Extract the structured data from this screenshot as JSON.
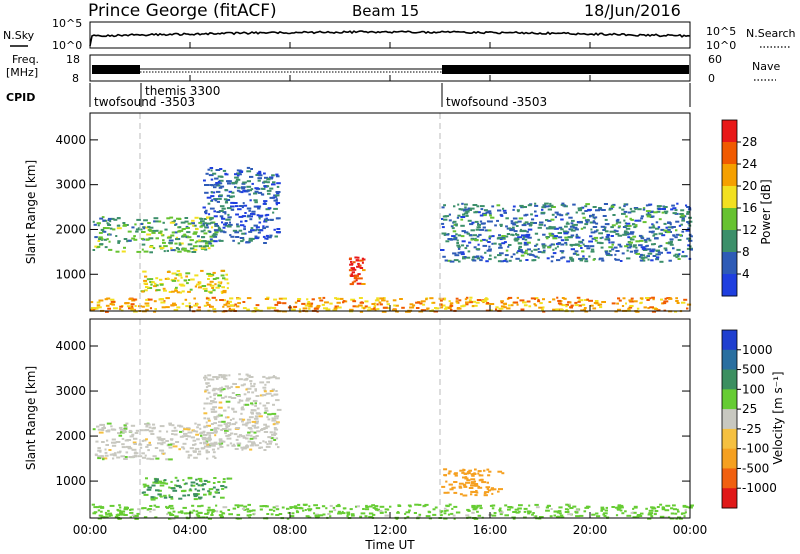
{
  "header": {
    "title": "Prince George (fitACF)",
    "beam": "Beam 15",
    "date": "18/Jun/2016"
  },
  "nsky_panel": {
    "left_label": "N.Sky",
    "right_label": "N.Search",
    "left_ticks": [
      "10^5",
      "10^0"
    ],
    "right_ticks": [
      "10^5",
      "10^0"
    ]
  },
  "freq_panel": {
    "left_label_1": "Freq.",
    "left_label_2": "[MHz]",
    "right_label": "Nave",
    "left_ticks": [
      "18",
      "8"
    ],
    "right_ticks": [
      "60",
      "0"
    ]
  },
  "cpid_panel": {
    "label": "CPID",
    "segments": [
      {
        "name": "twofsound -3503",
        "start_hour": 0,
        "end_hour": 2
      },
      {
        "name": "themis 3300",
        "start_hour": 2,
        "end_hour": 14
      },
      {
        "name": "twofsound -3503",
        "start_hour": 14,
        "end_hour": 24
      }
    ]
  },
  "x_axis": {
    "label": "Time UT",
    "ticks": [
      "00:00",
      "04:00",
      "08:00",
      "12:00",
      "16:00",
      "20:00",
      "00:00"
    ],
    "tick_hours": [
      0,
      4,
      8,
      12,
      16,
      20,
      24
    ],
    "range": [
      0,
      24
    ]
  },
  "chart_data": [
    {
      "type": "heatmap",
      "panel": "power",
      "xlabel": "Time UT",
      "ylabel": "Slant Range [km]",
      "xlim": [
        0,
        24
      ],
      "ylim": [
        180,
        4600
      ],
      "yticks": [
        1000,
        2000,
        3000,
        4000
      ],
      "colorbar": {
        "label": "Power [dB]",
        "ticks": [
          "4",
          "8",
          "12",
          "16",
          "20",
          "24",
          "28"
        ],
        "range": [
          0,
          32
        ],
        "colors": [
          "#1f3fdf",
          "#2e5bb6",
          "#3c8f6a",
          "#66c230",
          "#f2e020",
          "#f5a000",
          "#f05a00",
          "#e81818"
        ]
      },
      "features": [
        {
          "name": "backscatter band",
          "t_start": 0.1,
          "t_end": 5.0,
          "range_km": [
            1500,
            2300
          ],
          "power_db": 12
        },
        {
          "name": "backscatter arc",
          "t_start": 4.5,
          "t_end": 7.5,
          "range_km": [
            1700,
            3400
          ],
          "power_db": 6
        },
        {
          "name": "near-range echoes",
          "t_start": 2.0,
          "t_end": 5.5,
          "range_km": [
            600,
            1100
          ],
          "power_db": 18
        },
        {
          "name": "short burst",
          "t_start": 10.3,
          "t_end": 10.9,
          "range_km": [
            800,
            1400
          ],
          "power_db": 28
        },
        {
          "name": "ground scatter floor",
          "t_start": 0.0,
          "t_end": 24.0,
          "range_km": [
            180,
            500
          ],
          "power_db": 22
        },
        {
          "name": "evening scatter",
          "t_start": 14.0,
          "t_end": 24.0,
          "range_km": [
            1300,
            2600
          ],
          "power_db": 8
        }
      ]
    },
    {
      "type": "heatmap",
      "panel": "velocity",
      "xlabel": "Time UT",
      "ylabel": "Slant Range [km]",
      "xlim": [
        0,
        24
      ],
      "ylim": [
        180,
        4600
      ],
      "yticks": [
        1000,
        2000,
        3000,
        4000
      ],
      "colorbar": {
        "label": "Velocity [m s⁻¹]",
        "ticks": [
          "1000",
          "500",
          "100",
          "25",
          "-25",
          "-100",
          "-500",
          "-1000"
        ],
        "colors": [
          "#1f3fcf",
          "#2a6fa0",
          "#3c8f60",
          "#66cc33",
          "#c8c8c0",
          "#f5c040",
          "#f5a020",
          "#f06010",
          "#e01818"
        ]
      },
      "features": [
        {
          "name": "low-velocity band",
          "t_start": 0.1,
          "t_end": 5.0,
          "range_km": [
            1500,
            2300
          ],
          "velocity_ms": 0
        },
        {
          "name": "low-velocity arc",
          "t_start": 4.5,
          "t_end": 7.5,
          "range_km": [
            1700,
            3400
          ],
          "velocity_ms": 0
        },
        {
          "name": "positive near range",
          "t_start": 2.0,
          "t_end": 5.5,
          "range_km": [
            600,
            1100
          ],
          "velocity_ms": 100
        },
        {
          "name": "negative patch",
          "t_start": 14.0,
          "t_end": 16.5,
          "range_km": [
            700,
            1300
          ],
          "velocity_ms": -200
        },
        {
          "name": "ground scatter floor",
          "t_start": 0.0,
          "t_end": 24.0,
          "range_km": [
            180,
            500
          ],
          "velocity_ms": 50
        }
      ]
    }
  ]
}
